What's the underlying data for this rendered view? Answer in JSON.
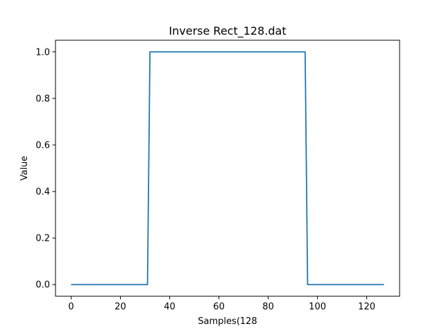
{
  "chart_data": {
    "type": "line",
    "title": "Inverse Rect_128.dat",
    "xlabel": "Samples(128",
    "ylabel": "Value",
    "xlim": [
      -6.35,
      133.35
    ],
    "ylim": [
      -0.05,
      1.05
    ],
    "xticks": [
      0,
      20,
      40,
      60,
      80,
      100,
      120
    ],
    "yticks": [
      0.0,
      0.2,
      0.4,
      0.6,
      0.8,
      1.0
    ],
    "xtick_labels": [
      "0",
      "20",
      "40",
      "60",
      "80",
      "100",
      "120"
    ],
    "ytick_labels": [
      "0.0",
      "0.2",
      "0.4",
      "0.6",
      "0.8",
      "1.0"
    ],
    "grid": false,
    "series": [
      {
        "color": "#1f77b4",
        "x": [
          0,
          31,
          32,
          95,
          96,
          127
        ],
        "y": [
          0,
          0,
          1,
          1,
          0,
          0
        ]
      }
    ]
  }
}
